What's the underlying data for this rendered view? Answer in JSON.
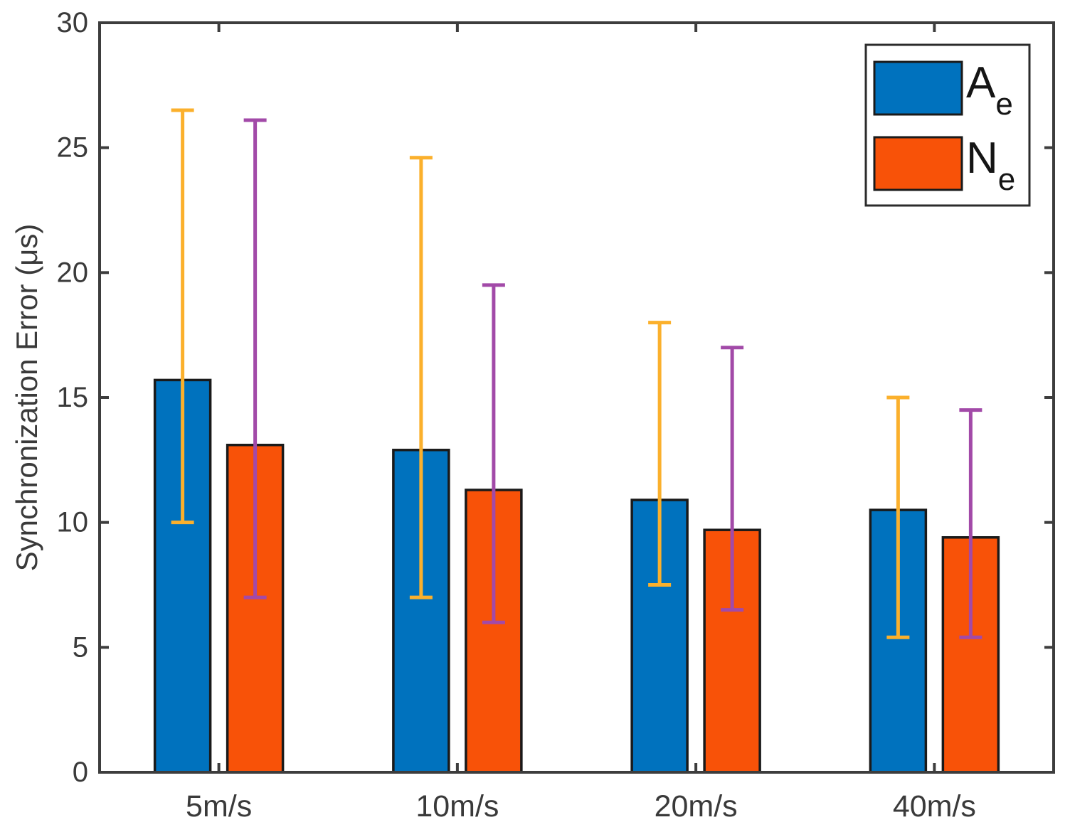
{
  "chart_data": {
    "type": "bar",
    "title": "",
    "xlabel": "",
    "ylabel": "Synchronization Error (μs)",
    "categories": [
      "5m/s",
      "10m/s",
      "20m/s",
      "40m/s"
    ],
    "series": [
      {
        "name": "A",
        "name_subscript": "e",
        "bar_color": "#0072BE",
        "error_bar_color": "#FBB02C",
        "values": [
          15.7,
          12.9,
          10.9,
          10.5
        ],
        "error_low": [
          10.0,
          7.0,
          7.5,
          5.4
        ],
        "error_high": [
          26.5,
          24.6,
          18.0,
          15.0
        ]
      },
      {
        "name": "N",
        "name_subscript": "e",
        "bar_color": "#F85208",
        "error_bar_color": "#A24AA8",
        "values": [
          13.1,
          11.3,
          9.7,
          9.4
        ],
        "error_low": [
          7.0,
          6.0,
          6.5,
          5.4
        ],
        "error_high": [
          26.1,
          19.5,
          17.0,
          14.5
        ]
      }
    ],
    "ylim": [
      0,
      30
    ],
    "yticks": [
      0,
      5,
      10,
      15,
      20,
      25,
      30
    ],
    "grid": false,
    "legend_position": "top-right",
    "axis_color": "#3d3d3d",
    "tick_label_color": "#3a3a3a",
    "bar_edge_color": "#1a1a1a",
    "legend_text_color": "#151515",
    "background_color": "#ffffff"
  }
}
